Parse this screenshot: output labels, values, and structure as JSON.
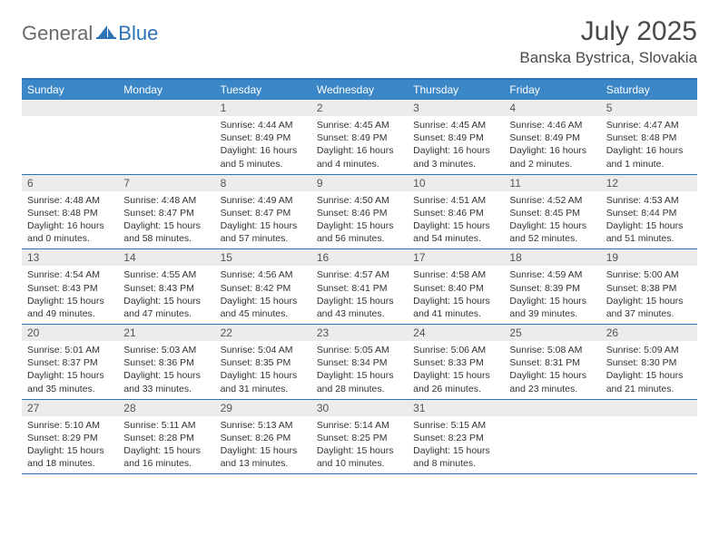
{
  "logo": {
    "text1": "General",
    "text2": "Blue"
  },
  "title": "July 2025",
  "location": "Banska Bystrica, Slovakia",
  "colors": {
    "header_bg": "#3b86c7",
    "header_border": "#2e74b5",
    "daynum_bg": "#ececec",
    "text": "#333333"
  },
  "weekdays": [
    "Sunday",
    "Monday",
    "Tuesday",
    "Wednesday",
    "Thursday",
    "Friday",
    "Saturday"
  ],
  "weeks": [
    [
      {
        "n": "",
        "sr": "",
        "ss": "",
        "dl": ""
      },
      {
        "n": "",
        "sr": "",
        "ss": "",
        "dl": ""
      },
      {
        "n": "1",
        "sr": "4:44 AM",
        "ss": "8:49 PM",
        "dl": "16 hours and 5 minutes."
      },
      {
        "n": "2",
        "sr": "4:45 AM",
        "ss": "8:49 PM",
        "dl": "16 hours and 4 minutes."
      },
      {
        "n": "3",
        "sr": "4:45 AM",
        "ss": "8:49 PM",
        "dl": "16 hours and 3 minutes."
      },
      {
        "n": "4",
        "sr": "4:46 AM",
        "ss": "8:49 PM",
        "dl": "16 hours and 2 minutes."
      },
      {
        "n": "5",
        "sr": "4:47 AM",
        "ss": "8:48 PM",
        "dl": "16 hours and 1 minute."
      }
    ],
    [
      {
        "n": "6",
        "sr": "4:48 AM",
        "ss": "8:48 PM",
        "dl": "16 hours and 0 minutes."
      },
      {
        "n": "7",
        "sr": "4:48 AM",
        "ss": "8:47 PM",
        "dl": "15 hours and 58 minutes."
      },
      {
        "n": "8",
        "sr": "4:49 AM",
        "ss": "8:47 PM",
        "dl": "15 hours and 57 minutes."
      },
      {
        "n": "9",
        "sr": "4:50 AM",
        "ss": "8:46 PM",
        "dl": "15 hours and 56 minutes."
      },
      {
        "n": "10",
        "sr": "4:51 AM",
        "ss": "8:46 PM",
        "dl": "15 hours and 54 minutes."
      },
      {
        "n": "11",
        "sr": "4:52 AM",
        "ss": "8:45 PM",
        "dl": "15 hours and 52 minutes."
      },
      {
        "n": "12",
        "sr": "4:53 AM",
        "ss": "8:44 PM",
        "dl": "15 hours and 51 minutes."
      }
    ],
    [
      {
        "n": "13",
        "sr": "4:54 AM",
        "ss": "8:43 PM",
        "dl": "15 hours and 49 minutes."
      },
      {
        "n": "14",
        "sr": "4:55 AM",
        "ss": "8:43 PM",
        "dl": "15 hours and 47 minutes."
      },
      {
        "n": "15",
        "sr": "4:56 AM",
        "ss": "8:42 PM",
        "dl": "15 hours and 45 minutes."
      },
      {
        "n": "16",
        "sr": "4:57 AM",
        "ss": "8:41 PM",
        "dl": "15 hours and 43 minutes."
      },
      {
        "n": "17",
        "sr": "4:58 AM",
        "ss": "8:40 PM",
        "dl": "15 hours and 41 minutes."
      },
      {
        "n": "18",
        "sr": "4:59 AM",
        "ss": "8:39 PM",
        "dl": "15 hours and 39 minutes."
      },
      {
        "n": "19",
        "sr": "5:00 AM",
        "ss": "8:38 PM",
        "dl": "15 hours and 37 minutes."
      }
    ],
    [
      {
        "n": "20",
        "sr": "5:01 AM",
        "ss": "8:37 PM",
        "dl": "15 hours and 35 minutes."
      },
      {
        "n": "21",
        "sr": "5:03 AM",
        "ss": "8:36 PM",
        "dl": "15 hours and 33 minutes."
      },
      {
        "n": "22",
        "sr": "5:04 AM",
        "ss": "8:35 PM",
        "dl": "15 hours and 31 minutes."
      },
      {
        "n": "23",
        "sr": "5:05 AM",
        "ss": "8:34 PM",
        "dl": "15 hours and 28 minutes."
      },
      {
        "n": "24",
        "sr": "5:06 AM",
        "ss": "8:33 PM",
        "dl": "15 hours and 26 minutes."
      },
      {
        "n": "25",
        "sr": "5:08 AM",
        "ss": "8:31 PM",
        "dl": "15 hours and 23 minutes."
      },
      {
        "n": "26",
        "sr": "5:09 AM",
        "ss": "8:30 PM",
        "dl": "15 hours and 21 minutes."
      }
    ],
    [
      {
        "n": "27",
        "sr": "5:10 AM",
        "ss": "8:29 PM",
        "dl": "15 hours and 18 minutes."
      },
      {
        "n": "28",
        "sr": "5:11 AM",
        "ss": "8:28 PM",
        "dl": "15 hours and 16 minutes."
      },
      {
        "n": "29",
        "sr": "5:13 AM",
        "ss": "8:26 PM",
        "dl": "15 hours and 13 minutes."
      },
      {
        "n": "30",
        "sr": "5:14 AM",
        "ss": "8:25 PM",
        "dl": "15 hours and 10 minutes."
      },
      {
        "n": "31",
        "sr": "5:15 AM",
        "ss": "8:23 PM",
        "dl": "15 hours and 8 minutes."
      },
      {
        "n": "",
        "sr": "",
        "ss": "",
        "dl": ""
      },
      {
        "n": "",
        "sr": "",
        "ss": "",
        "dl": ""
      }
    ]
  ],
  "labels": {
    "sunrise": "Sunrise:",
    "sunset": "Sunset:",
    "daylight": "Daylight:"
  }
}
